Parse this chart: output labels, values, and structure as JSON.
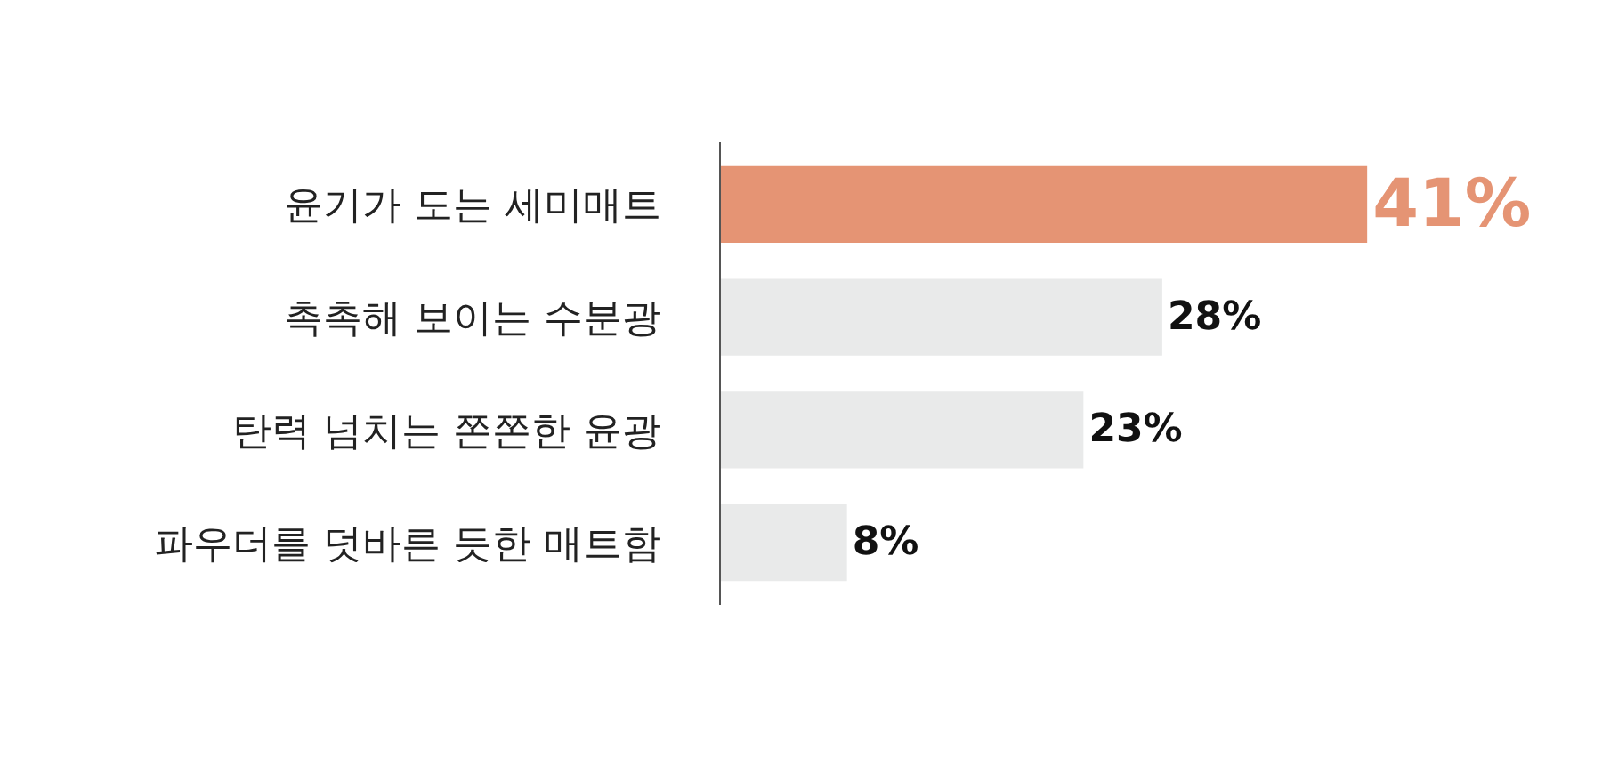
{
  "chart_data": {
    "type": "bar",
    "orientation": "horizontal",
    "categories": [
      "윤기가 도는 세미매트",
      "촉촉해 보이는 수분광",
      "탄력 넘치는 쫀쫀한 윤광",
      "파우더를 덧바른 듯한 매트함"
    ],
    "values": [
      41,
      28,
      23,
      8
    ],
    "value_labels": [
      "41%",
      "28%",
      "23%",
      "8%"
    ],
    "colors": [
      "#e59474",
      "#e9eaea",
      "#e9eaea",
      "#e9eaea"
    ]
  }
}
